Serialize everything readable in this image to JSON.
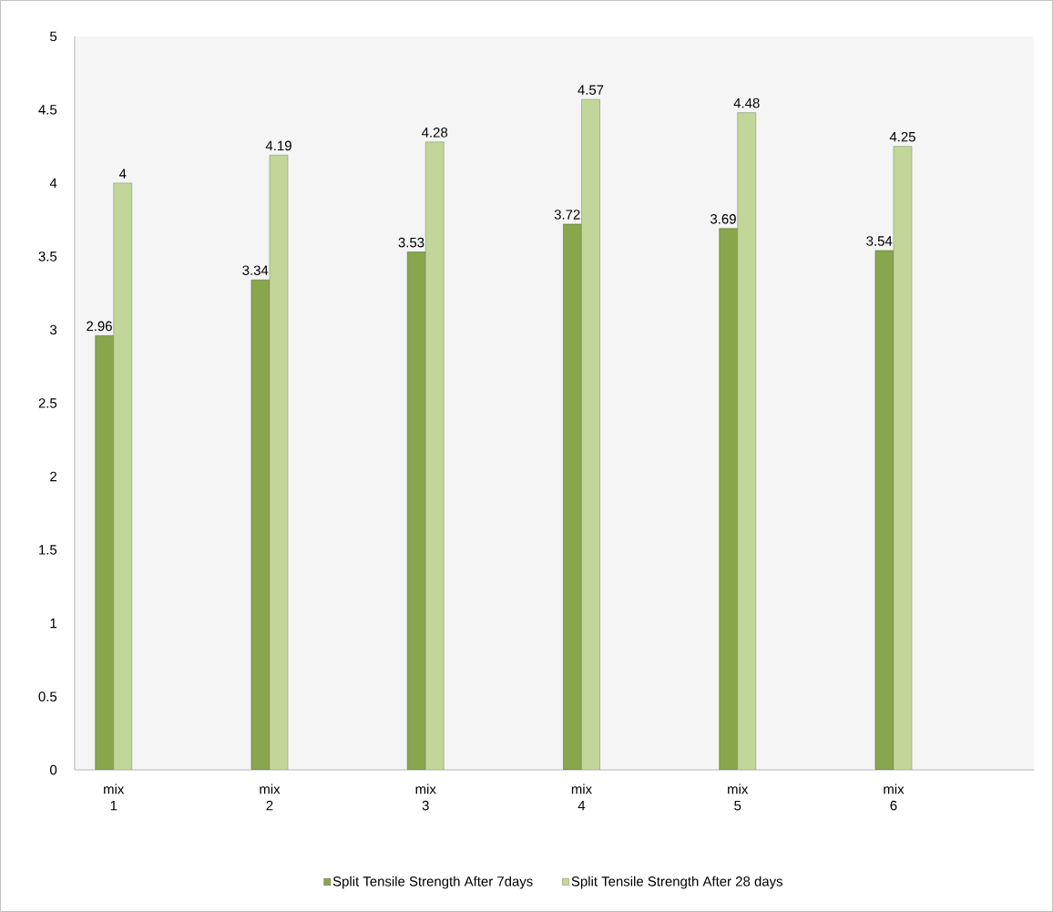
{
  "chart_data": {
    "type": "bar",
    "categories": [
      "mix 1",
      "mix 2",
      "mix 3",
      "mix 4",
      "mix 5",
      "mix 6"
    ],
    "series": [
      {
        "name": "Split Tensile Strength After 7days",
        "color": "#88a64c",
        "values": [
          2.96,
          3.34,
          3.53,
          3.72,
          3.69,
          3.54
        ]
      },
      {
        "name": "Split Tensile Strength After 28 days",
        "color": "#c2d69a",
        "values": [
          4,
          4.19,
          4.28,
          4.57,
          4.48,
          4.25
        ]
      }
    ],
    "ylim": [
      0,
      5
    ],
    "yticks": [
      0,
      0.5,
      1,
      1.5,
      2,
      2.5,
      3,
      3.5,
      4,
      4.5,
      5
    ],
    "data_labels": true,
    "grid": false,
    "legend": "bottom"
  }
}
